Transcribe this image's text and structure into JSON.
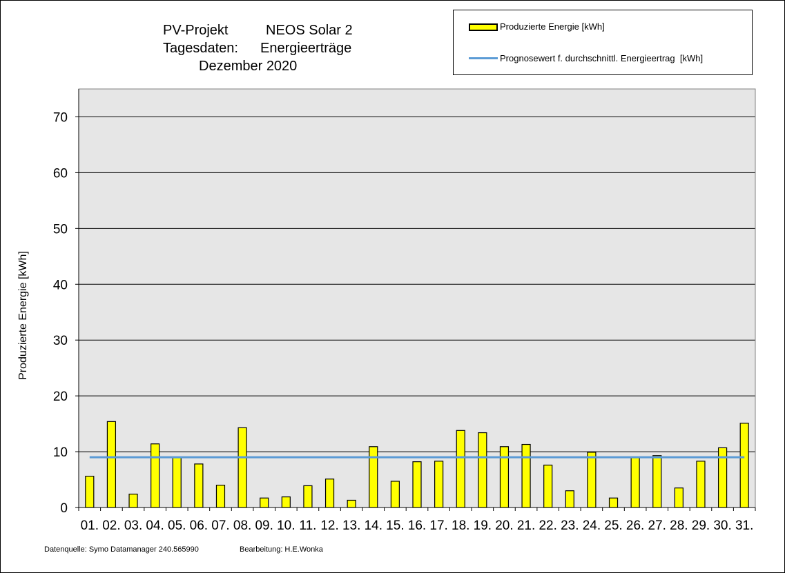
{
  "title": {
    "line1_left": "PV-Projekt",
    "line1_right": "NEOS Solar 2",
    "line2_left": "Tagesdaten:",
    "line2_right": "Energieerträge",
    "line3": "Dezember 2020"
  },
  "legend": {
    "bar_label": "Produzierte Energie [kWh]",
    "line_label": "Prognosewert f. durchschnittl. Energieertrag  [kWh]"
  },
  "footer": {
    "source": "Datenquelle: Symo Datamanager 240.565990",
    "author": "Bearbeitung: H.E.Wonka"
  },
  "colors": {
    "bar_fill": "#ffff00",
    "bar_stroke": "#000000",
    "forecast_line": "#5b9bd5",
    "plot_background": "#e6e6e6",
    "gridline": "#000000"
  },
  "chart_data": {
    "type": "bar",
    "ylabel": "Produzierte Energie [kWh]",
    "ylim": [
      0,
      75
    ],
    "yticks": [
      0,
      10,
      20,
      30,
      40,
      50,
      60,
      70
    ],
    "grid": true,
    "legend_position": "top-right",
    "categories": [
      "01.",
      "02.",
      "03.",
      "04.",
      "05.",
      "06.",
      "07.",
      "08.",
      "09.",
      "10.",
      "11.",
      "12.",
      "13.",
      "14.",
      "15.",
      "16.",
      "17.",
      "18.",
      "19.",
      "20.",
      "21.",
      "22.",
      "23.",
      "24.",
      "25.",
      "26.",
      "27.",
      "28.",
      "29.",
      "30.",
      "31."
    ],
    "series": [
      {
        "name": "Produzierte Energie [kWh]",
        "type": "bar",
        "values": [
          5.6,
          15.4,
          2.4,
          11.4,
          9.0,
          7.8,
          4.0,
          14.3,
          1.7,
          1.9,
          3.9,
          5.1,
          1.3,
          10.9,
          4.7,
          8.2,
          8.3,
          13.8,
          13.4,
          10.9,
          11.3,
          7.6,
          3.0,
          9.9,
          1.7,
          9.0,
          9.3,
          3.5,
          8.3,
          10.7,
          15.1
        ]
      },
      {
        "name": "Prognosewert f. durchschnittl. Energieertrag  [kWh]",
        "type": "line",
        "values": [
          9.0,
          9.0,
          9.0,
          9.0,
          9.0,
          9.0,
          9.0,
          9.0,
          9.0,
          9.0,
          9.0,
          9.0,
          9.0,
          9.0,
          9.0,
          9.0,
          9.0,
          9.0,
          9.0,
          9.0,
          9.0,
          9.0,
          9.0,
          9.0,
          9.0,
          9.0,
          9.0,
          9.0,
          9.0,
          9.0,
          9.0
        ]
      }
    ]
  }
}
